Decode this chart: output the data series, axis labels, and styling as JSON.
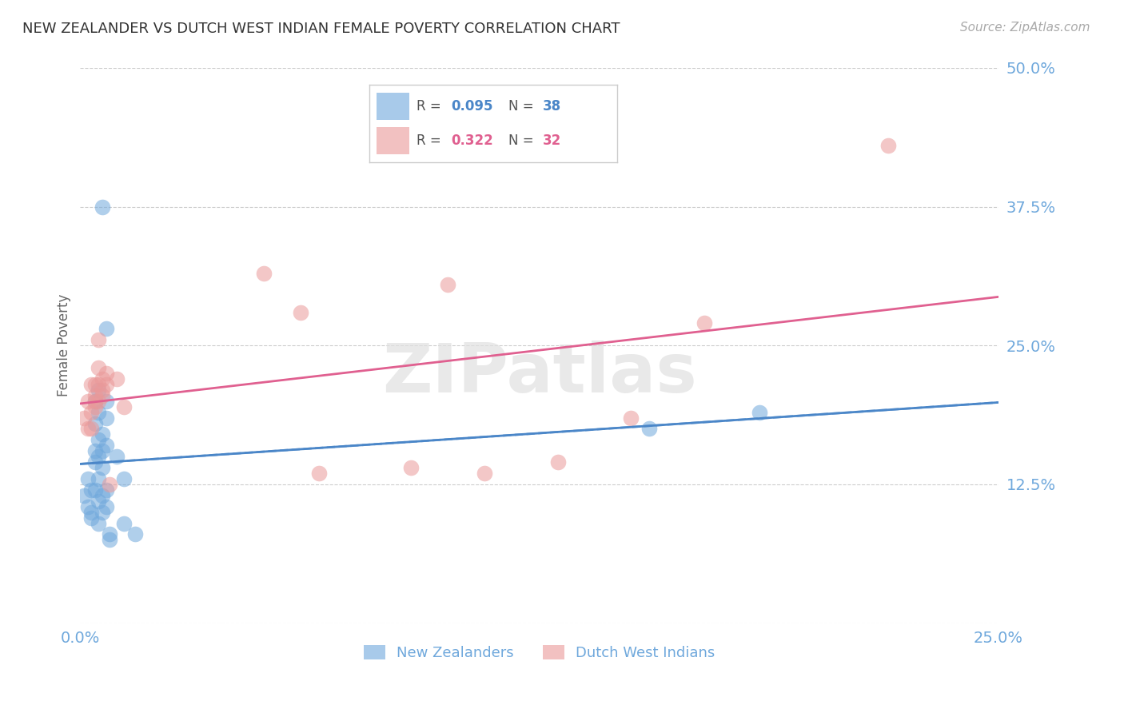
{
  "title": "NEW ZEALANDER VS DUTCH WEST INDIAN FEMALE POVERTY CORRELATION CHART",
  "source": "Source: ZipAtlas.com",
  "ylabel": "Female Poverty",
  "xlim": [
    0.0,
    0.25
  ],
  "ylim": [
    0.0,
    0.5
  ],
  "yticks": [
    0.0,
    0.125,
    0.25,
    0.375,
    0.5
  ],
  "ytick_labels": [
    "",
    "12.5%",
    "25.0%",
    "37.5%",
    "50.0%"
  ],
  "xticks": [
    0.0,
    0.05,
    0.1,
    0.15,
    0.2,
    0.25
  ],
  "xtick_labels": [
    "0.0%",
    "",
    "",
    "",
    "",
    "25.0%"
  ],
  "blue_R": 0.095,
  "blue_N": 38,
  "pink_R": 0.322,
  "pink_N": 32,
  "blue_scatter": [
    [
      0.001,
      0.115
    ],
    [
      0.002,
      0.13
    ],
    [
      0.002,
      0.105
    ],
    [
      0.003,
      0.12
    ],
    [
      0.003,
      0.1
    ],
    [
      0.003,
      0.095
    ],
    [
      0.004,
      0.2
    ],
    [
      0.004,
      0.18
    ],
    [
      0.004,
      0.155
    ],
    [
      0.004,
      0.145
    ],
    [
      0.004,
      0.12
    ],
    [
      0.005,
      0.21
    ],
    [
      0.005,
      0.19
    ],
    [
      0.005,
      0.165
    ],
    [
      0.005,
      0.15
    ],
    [
      0.005,
      0.13
    ],
    [
      0.005,
      0.11
    ],
    [
      0.005,
      0.09
    ],
    [
      0.006,
      0.375
    ],
    [
      0.006,
      0.17
    ],
    [
      0.006,
      0.155
    ],
    [
      0.006,
      0.14
    ],
    [
      0.006,
      0.115
    ],
    [
      0.006,
      0.1
    ],
    [
      0.007,
      0.265
    ],
    [
      0.007,
      0.2
    ],
    [
      0.007,
      0.185
    ],
    [
      0.007,
      0.16
    ],
    [
      0.007,
      0.12
    ],
    [
      0.007,
      0.105
    ],
    [
      0.008,
      0.08
    ],
    [
      0.008,
      0.075
    ],
    [
      0.01,
      0.15
    ],
    [
      0.012,
      0.13
    ],
    [
      0.012,
      0.09
    ],
    [
      0.015,
      0.08
    ],
    [
      0.155,
      0.175
    ],
    [
      0.185,
      0.19
    ]
  ],
  "pink_scatter": [
    [
      0.001,
      0.185
    ],
    [
      0.002,
      0.2
    ],
    [
      0.002,
      0.175
    ],
    [
      0.003,
      0.215
    ],
    [
      0.003,
      0.19
    ],
    [
      0.003,
      0.175
    ],
    [
      0.004,
      0.215
    ],
    [
      0.004,
      0.205
    ],
    [
      0.004,
      0.2
    ],
    [
      0.004,
      0.195
    ],
    [
      0.005,
      0.255
    ],
    [
      0.005,
      0.23
    ],
    [
      0.005,
      0.215
    ],
    [
      0.005,
      0.2
    ],
    [
      0.006,
      0.22
    ],
    [
      0.006,
      0.21
    ],
    [
      0.006,
      0.205
    ],
    [
      0.007,
      0.225
    ],
    [
      0.007,
      0.215
    ],
    [
      0.008,
      0.125
    ],
    [
      0.01,
      0.22
    ],
    [
      0.012,
      0.195
    ],
    [
      0.05,
      0.315
    ],
    [
      0.06,
      0.28
    ],
    [
      0.065,
      0.135
    ],
    [
      0.09,
      0.14
    ],
    [
      0.1,
      0.305
    ],
    [
      0.11,
      0.135
    ],
    [
      0.13,
      0.145
    ],
    [
      0.15,
      0.185
    ],
    [
      0.17,
      0.27
    ],
    [
      0.22,
      0.43
    ]
  ],
  "blue_color": "#6fa8dc",
  "pink_color": "#ea9999",
  "trend_blue_color": "#4a86c8",
  "trend_pink_color": "#e06090",
  "watermark": "ZIPatlas",
  "background_color": "#ffffff",
  "grid_color": "#cccccc",
  "axis_label_color": "#6fa8dc",
  "title_color": "#333333"
}
